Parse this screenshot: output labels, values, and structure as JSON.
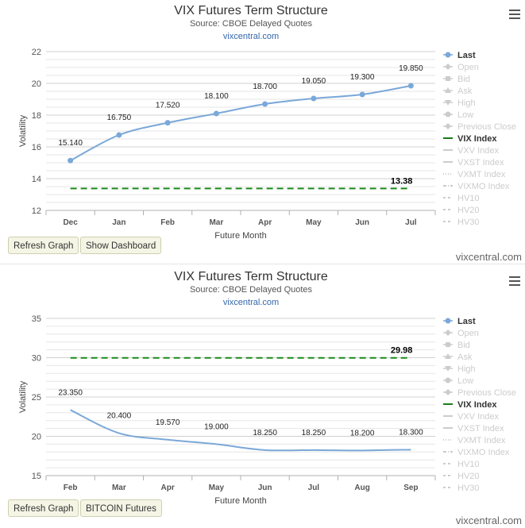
{
  "panels": [
    {
      "title": "VIX Futures Term Structure",
      "subtitle": "Source: CBOE Delayed Quotes",
      "site": "vixcentral.com",
      "footer": "vixcentral.com",
      "buttons": [
        "Refresh Graph",
        "Show Dashboard"
      ],
      "menu_icon": "hamburger-menu-icon"
    },
    {
      "title": "VIX Futures Term Structure",
      "subtitle": "Source: CBOE Delayed Quotes",
      "site": "vixcentral.com",
      "footer": "vixcentral.com",
      "buttons": [
        "Refresh Graph",
        "BITCOIN Futures"
      ],
      "menu_icon": "hamburger-menu-icon"
    }
  ],
  "legend": [
    {
      "label": "Last",
      "active": true,
      "symbol": "circle",
      "color": "#7aa8d8"
    },
    {
      "label": "Open",
      "active": false,
      "symbol": "diamond",
      "color": "#cccccc"
    },
    {
      "label": "Bid",
      "active": false,
      "symbol": "square",
      "color": "#cccccc"
    },
    {
      "label": "Ask",
      "active": false,
      "symbol": "triangle",
      "color": "#cccccc"
    },
    {
      "label": "High",
      "active": false,
      "symbol": "triangle-down",
      "color": "#cccccc"
    },
    {
      "label": "Low",
      "active": false,
      "symbol": "circle",
      "color": "#cccccc"
    },
    {
      "label": "Previous Close",
      "active": false,
      "symbol": "diamond",
      "color": "#cccccc"
    },
    {
      "label": "VIX Index",
      "active": true,
      "symbol": "line",
      "color": "#1a7a1a"
    },
    {
      "label": "VXV Index",
      "active": false,
      "symbol": "line",
      "color": "#cccccc"
    },
    {
      "label": "VXST Index",
      "active": false,
      "symbol": "line",
      "color": "#cccccc"
    },
    {
      "label": "VXMT Index",
      "active": false,
      "symbol": "dotted",
      "color": "#cccccc"
    },
    {
      "label": "VIXMO Index",
      "active": false,
      "symbol": "dashdot",
      "color": "#cccccc"
    },
    {
      "label": "HV10",
      "active": false,
      "symbol": "dashed",
      "color": "#cccccc"
    },
    {
      "label": "HV20",
      "active": false,
      "symbol": "dashed",
      "color": "#cccccc"
    },
    {
      "label": "HV30",
      "active": false,
      "symbol": "dashed",
      "color": "#cccccc"
    }
  ],
  "chart_data": [
    {
      "type": "line",
      "title": "VIX Futures Term Structure",
      "subtitle": "Source: CBOE Delayed Quotes",
      "categories": [
        "Dec",
        "Jan",
        "Feb",
        "Mar",
        "Apr",
        "May",
        "Jun",
        "Jul"
      ],
      "series": [
        {
          "name": "Last",
          "values": [
            15.14,
            16.75,
            17.52,
            18.1,
            18.7,
            19.05,
            19.3,
            19.85
          ],
          "labels": [
            "15.140",
            "16.750",
            "17.520",
            "18.100",
            "18.700",
            "19.050",
            "19.300",
            "19.850"
          ],
          "color": "#7aa8d8",
          "markers": true
        },
        {
          "name": "VIX Index",
          "values": [
            13.38,
            13.38,
            13.38,
            13.38,
            13.38,
            13.38,
            13.38,
            13.38
          ],
          "end_label": "13.38",
          "color": "#1a8a1a",
          "dashed": true
        }
      ],
      "xlabel": "Future Month",
      "ylabel": "Volatility",
      "ylim": [
        12,
        22
      ],
      "yticks": [
        12,
        14,
        16,
        18,
        20,
        22
      ],
      "grid": true,
      "legend": "right"
    },
    {
      "type": "line",
      "title": "VIX Futures Term Structure",
      "subtitle": "Source: CBOE Delayed Quotes",
      "categories": [
        "Feb",
        "Mar",
        "Apr",
        "May",
        "Jun",
        "Jul",
        "Aug",
        "Sep"
      ],
      "series": [
        {
          "name": "Last",
          "values": [
            23.35,
            20.4,
            19.57,
            19.0,
            18.25,
            18.25,
            18.2,
            18.3
          ],
          "labels": [
            "23.350",
            "20.400",
            "19.570",
            "19.000",
            "18.250",
            "18.250",
            "18.200",
            "18.300"
          ],
          "color": "#7aa8d8",
          "markers": false
        },
        {
          "name": "VIX Index",
          "values": [
            29.98,
            29.98,
            29.98,
            29.98,
            29.98,
            29.98,
            29.98,
            29.98
          ],
          "end_label": "29.98",
          "color": "#1a8a1a",
          "dashed": true
        }
      ],
      "xlabel": "Future Month",
      "ylabel": "Volatility",
      "ylim": [
        15,
        35
      ],
      "yticks": [
        15,
        20,
        25,
        30,
        35
      ],
      "grid": true,
      "legend": "right"
    }
  ]
}
